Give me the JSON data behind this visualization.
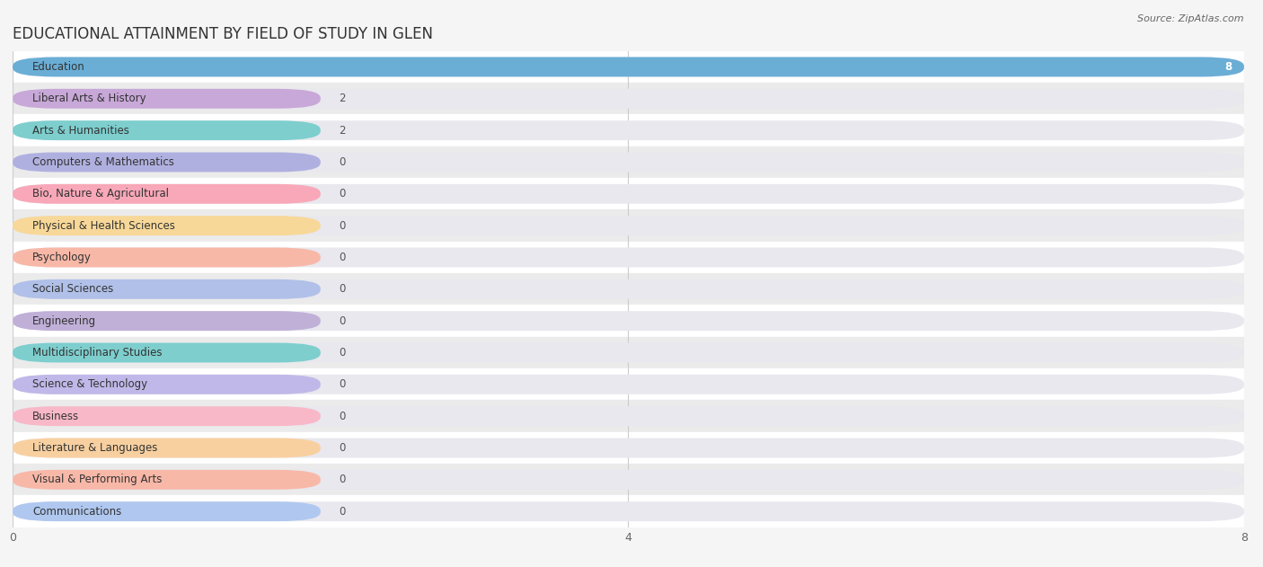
{
  "title": "EDUCATIONAL ATTAINMENT BY FIELD OF STUDY IN GLEN",
  "source": "Source: ZipAtlas.com",
  "categories": [
    "Education",
    "Liberal Arts & History",
    "Arts & Humanities",
    "Computers & Mathematics",
    "Bio, Nature & Agricultural",
    "Physical & Health Sciences",
    "Psychology",
    "Social Sciences",
    "Engineering",
    "Multidisciplinary Studies",
    "Science & Technology",
    "Business",
    "Literature & Languages",
    "Visual & Performing Arts",
    "Communications"
  ],
  "values": [
    8,
    2,
    2,
    0,
    0,
    0,
    0,
    0,
    0,
    0,
    0,
    0,
    0,
    0,
    0
  ],
  "bar_colors": [
    "#6aaed6",
    "#c8a8d8",
    "#7ecece",
    "#b0b0e0",
    "#f8a8b8",
    "#f8d898",
    "#f8b8a8",
    "#b0c0e8",
    "#c0b0d8",
    "#7ecece",
    "#c0b8e8",
    "#f8b8c8",
    "#f8d0a0",
    "#f8b8a8",
    "#b0c8f0"
  ],
  "xlim": [
    0,
    8
  ],
  "xticks": [
    0,
    4,
    8
  ],
  "bg_white": "#ffffff",
  "bg_gray": "#ebebeb",
  "full_bar_color": "#e8e8ee",
  "grid_color": "#cccccc",
  "title_fontsize": 12,
  "label_fontsize": 8.5,
  "value_fontsize": 8.5,
  "label_bar_width": 2.0,
  "bar_height": 0.62
}
